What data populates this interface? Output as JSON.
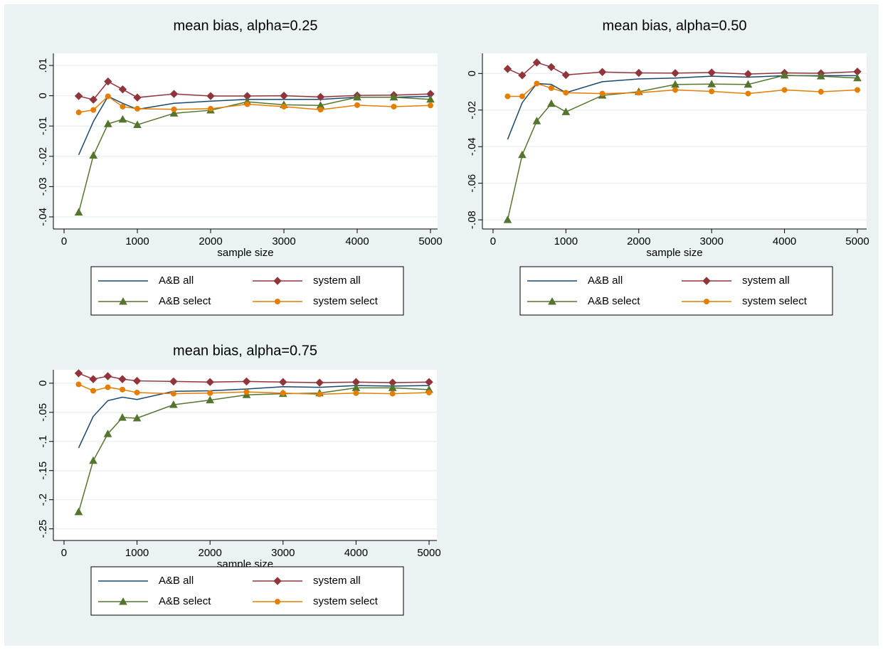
{
  "chart_data": [
    {
      "type": "line",
      "title": "mean bias, alpha=0.25",
      "x_label": "sample size",
      "x": [
        200,
        400,
        600,
        800,
        1000,
        1500,
        2000,
        2500,
        3000,
        3500,
        4000,
        4500,
        5000
      ],
      "xlim": [
        -146,
        5097
      ],
      "xticks": [
        0,
        1000,
        2000,
        3000,
        4000,
        5000
      ],
      "ylim": [
        -0.044,
        0.014
      ],
      "yticks": [
        {
          "value": -0.04,
          "label": "-.04"
        },
        {
          "value": -0.03,
          "label": "-.03"
        },
        {
          "value": -0.02,
          "label": "-.02"
        },
        {
          "value": -0.01,
          "label": "-.01"
        },
        0,
        {
          "value": 0.01,
          "label": ".01"
        }
      ],
      "grid": true,
      "series": [
        {
          "name": "A&B all",
          "color": "#1a476f",
          "marker": "none",
          "values": [
            -0.0195,
            -0.0085,
            -0.0002,
            -0.0025,
            -0.0045,
            -0.0025,
            -0.0018,
            -0.0012,
            -0.0012,
            -0.0012,
            -0.0005,
            -0.0005,
            -0.0002
          ]
        },
        {
          "name": "system all",
          "color": "#90353b",
          "marker": "diamond",
          "values": [
            -0.0001,
            -0.0013,
            0.0047,
            0.0021,
            -0.0006,
            0.0006,
            -0.0001,
            -0.0001,
            0.0,
            -0.0004,
            0.0001,
            0.0002,
            0.0006
          ]
        },
        {
          "name": "A&B select",
          "color": "#55752f",
          "marker": "triangle",
          "values": [
            -0.0385,
            -0.0197,
            -0.0093,
            -0.0078,
            -0.0096,
            -0.0058,
            -0.0048,
            -0.002,
            -0.003,
            -0.0032,
            -0.0005,
            -0.0005,
            -0.0012
          ]
        },
        {
          "name": "system select",
          "color": "#e37e00",
          "marker": "circle",
          "values": [
            -0.0055,
            -0.0047,
            -0.0002,
            -0.0036,
            -0.0043,
            -0.0045,
            -0.0043,
            -0.0028,
            -0.0036,
            -0.0046,
            -0.0031,
            -0.0036,
            -0.0032
          ]
        }
      ]
    },
    {
      "type": "line",
      "title": "mean bias, alpha=0.50",
      "x_label": "sample size",
      "x": [
        200,
        400,
        600,
        800,
        1000,
        1500,
        2000,
        2500,
        3000,
        3500,
        4000,
        4500,
        5000
      ],
      "xlim": [
        -146,
        5127
      ],
      "xticks": [
        0,
        1000,
        2000,
        3000,
        4000,
        5000
      ],
      "ylim": [
        -0.085,
        0.011
      ],
      "yticks": [
        {
          "value": -0.08,
          "label": "-.08"
        },
        {
          "value": -0.06,
          "label": "-.06"
        },
        {
          "value": -0.04,
          "label": "-.04"
        },
        {
          "value": -0.02,
          "label": "-.02"
        },
        0
      ],
      "grid": true,
      "series": [
        {
          "name": "A&B all",
          "color": "#1a476f",
          "marker": "none",
          "values": [
            -0.036,
            -0.016,
            -0.0055,
            -0.006,
            -0.0105,
            -0.0045,
            -0.003,
            -0.0025,
            -0.0015,
            -0.002,
            -0.0012,
            -0.0012,
            -0.0012
          ]
        },
        {
          "name": "system all",
          "color": "#90353b",
          "marker": "diamond",
          "values": [
            0.0025,
            -0.001,
            0.006,
            0.0035,
            -0.0008,
            0.0008,
            0.0003,
            0.0002,
            0.0005,
            -0.0003,
            0.0003,
            0.0001,
            0.001
          ]
        },
        {
          "name": "A&B select",
          "color": "#55752f",
          "marker": "triangle",
          "values": [
            -0.08,
            -0.0445,
            -0.026,
            -0.0165,
            -0.021,
            -0.012,
            -0.01,
            -0.006,
            -0.0058,
            -0.006,
            -0.001,
            -0.0015,
            -0.0025
          ]
        },
        {
          "name": "system select",
          "color": "#e37e00",
          "marker": "circle",
          "values": [
            -0.0125,
            -0.0125,
            -0.0055,
            -0.008,
            -0.0105,
            -0.011,
            -0.0105,
            -0.009,
            -0.0098,
            -0.011,
            -0.009,
            -0.01,
            -0.009
          ]
        }
      ]
    },
    {
      "type": "line",
      "title": "mean bias, alpha=0.75",
      "x_label": "sample size",
      "x": [
        200,
        400,
        600,
        800,
        1000,
        1500,
        2000,
        2500,
        3000,
        3500,
        4000,
        4500,
        5000
      ],
      "xlim": [
        -146,
        5107
      ],
      "xticks": [
        0,
        1000,
        2000,
        3000,
        4000,
        5000
      ],
      "ylim": [
        -0.27,
        0.023
      ],
      "yticks": [
        {
          "value": -0.25,
          "label": "-.25"
        },
        {
          "value": -0.2,
          "label": "-.2"
        },
        {
          "value": -0.15,
          "label": "-.15"
        },
        {
          "value": -0.1,
          "label": "-.1"
        },
        {
          "value": -0.05,
          "label": "-.05"
        },
        0
      ],
      "grid": true,
      "series": [
        {
          "name": "A&B all",
          "color": "#1a476f",
          "marker": "none",
          "values": [
            -0.111,
            -0.057,
            -0.03,
            -0.024,
            -0.028,
            -0.014,
            -0.013,
            -0.01,
            -0.006,
            -0.007,
            -0.004,
            -0.005,
            -0.004
          ]
        },
        {
          "name": "system all",
          "color": "#90353b",
          "marker": "diamond",
          "values": [
            0.017,
            0.007,
            0.012,
            0.007,
            0.004,
            0.003,
            0.002,
            0.003,
            0.002,
            0.001,
            0.002,
            0.001,
            0.002
          ]
        },
        {
          "name": "A&B select",
          "color": "#55752f",
          "marker": "triangle",
          "values": [
            -0.221,
            -0.133,
            -0.087,
            -0.059,
            -0.06,
            -0.037,
            -0.029,
            -0.02,
            -0.018,
            -0.017,
            -0.008,
            -0.008,
            -0.011
          ]
        },
        {
          "name": "system select",
          "color": "#e37e00",
          "marker": "circle",
          "values": [
            -0.002,
            -0.013,
            -0.007,
            -0.011,
            -0.016,
            -0.018,
            -0.017,
            -0.015,
            -0.017,
            -0.019,
            -0.017,
            -0.018,
            -0.016
          ]
        }
      ]
    }
  ]
}
